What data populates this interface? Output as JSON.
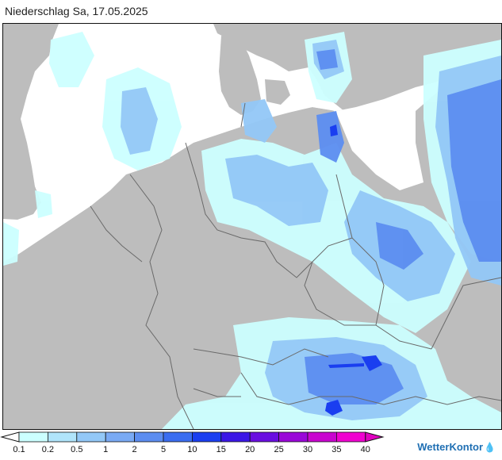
{
  "header": {
    "title": "Niederschlag Sa, 17.05.2025"
  },
  "legend": {
    "labels": [
      "0.1",
      "0.2",
      "0.5",
      "1",
      "2",
      "5",
      "10",
      "15",
      "20",
      "25",
      "30",
      "35",
      "40"
    ],
    "colors": [
      "#ffffff",
      "#ccffff",
      "#b0e4fa",
      "#93c8f7",
      "#7aaaf4",
      "#5c8df0",
      "#3a6df0",
      "#1a3ef0",
      "#3b16e6",
      "#6a0ee0",
      "#9a07d8",
      "#c904cf",
      "#f000d0",
      "#e000c0"
    ]
  },
  "branding": {
    "name": "WetterKontor",
    "mark": "💧"
  },
  "colors": {
    "land": "#bdbdbd",
    "sea": "#ffffff",
    "border": "#6a6a6a",
    "precip_light": "#ccffff",
    "precip_mid": "#93c8f7",
    "precip_heavy": "#5c8df0",
    "precip_max": "#1a3ef0"
  }
}
